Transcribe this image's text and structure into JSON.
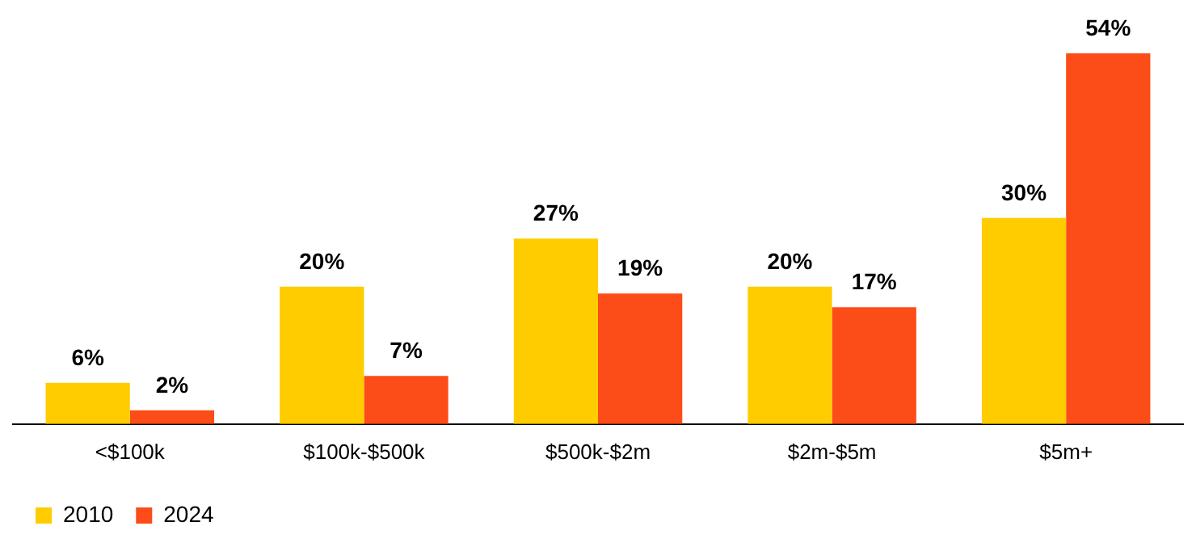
{
  "chart_data": {
    "type": "bar",
    "categories": [
      "<$100k",
      "$100k-$500k",
      "$500k-$2m",
      "$2m-$5m",
      "$5m+"
    ],
    "series": [
      {
        "name": "2010",
        "color": "#ffcc00",
        "values": [
          6,
          20,
          27,
          20,
          30
        ],
        "value_labels": [
          "6%",
          "20%",
          "27%",
          "20%",
          "30%"
        ]
      },
      {
        "name": "2024",
        "color": "#fc4c17",
        "values": [
          2,
          7,
          19,
          17,
          54
        ],
        "value_labels": [
          "2%",
          "7%",
          "19%",
          "17%",
          "54%"
        ]
      }
    ],
    "legend": "bottom left",
    "grid": false
  }
}
